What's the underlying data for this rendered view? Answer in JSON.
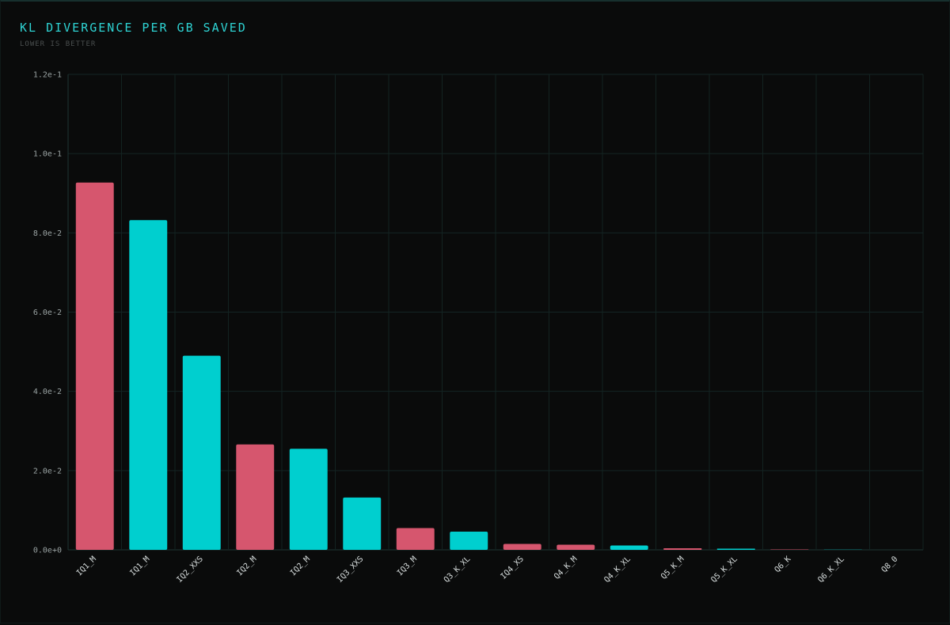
{
  "chart_data": {
    "type": "bar",
    "title": "KL DIVERGENCE PER GB SAVED",
    "subtitle": "LOWER IS BETTER",
    "xlabel": "",
    "ylabel": "",
    "ylim": [
      0,
      0.12
    ],
    "yticks": [
      {
        "value": 0.0,
        "label": "0.0e+0"
      },
      {
        "value": 0.02,
        "label": "2.0e-2"
      },
      {
        "value": 0.04,
        "label": "4.0e-2"
      },
      {
        "value": 0.06,
        "label": "6.0e-2"
      },
      {
        "value": 0.08,
        "label": "8.0e-2"
      },
      {
        "value": 0.1,
        "label": "1.0e-1"
      },
      {
        "value": 0.12,
        "label": "1.2e-1"
      }
    ],
    "grid": true,
    "legend": "none",
    "colors": {
      "pink": "#d6566e",
      "cyan": "#00cfcf"
    },
    "bars": [
      {
        "category": "IQ1_M",
        "value": 0.0927,
        "color": "pink"
      },
      {
        "category": "IQ1_M",
        "value": 0.0832,
        "color": "cyan"
      },
      {
        "category": "IQ2_XXS",
        "value": 0.049,
        "color": "cyan"
      },
      {
        "category": "IQ2_M",
        "value": 0.0266,
        "color": "pink"
      },
      {
        "category": "IQ2_M",
        "value": 0.0255,
        "color": "cyan"
      },
      {
        "category": "IQ3_XXS",
        "value": 0.0132,
        "color": "cyan"
      },
      {
        "category": "IQ3_M",
        "value": 0.0055,
        "color": "pink"
      },
      {
        "category": "Q3_K_XL",
        "value": 0.0046,
        "color": "cyan"
      },
      {
        "category": "IQ4_XS",
        "value": 0.0015,
        "color": "pink"
      },
      {
        "category": "Q4_K_M",
        "value": 0.0013,
        "color": "pink"
      },
      {
        "category": "Q4_K_XL",
        "value": 0.0011,
        "color": "cyan"
      },
      {
        "category": "Q5_K_M",
        "value": 0.0004,
        "color": "pink"
      },
      {
        "category": "Q5_K_XL",
        "value": 0.0003,
        "color": "cyan"
      },
      {
        "category": "Q6_K",
        "value": 0.0001,
        "color": "pink"
      },
      {
        "category": "Q6_K_XL",
        "value": 5e-05,
        "color": "cyan"
      },
      {
        "category": "Q8_0",
        "value": 0.0,
        "color": "pink"
      }
    ]
  }
}
